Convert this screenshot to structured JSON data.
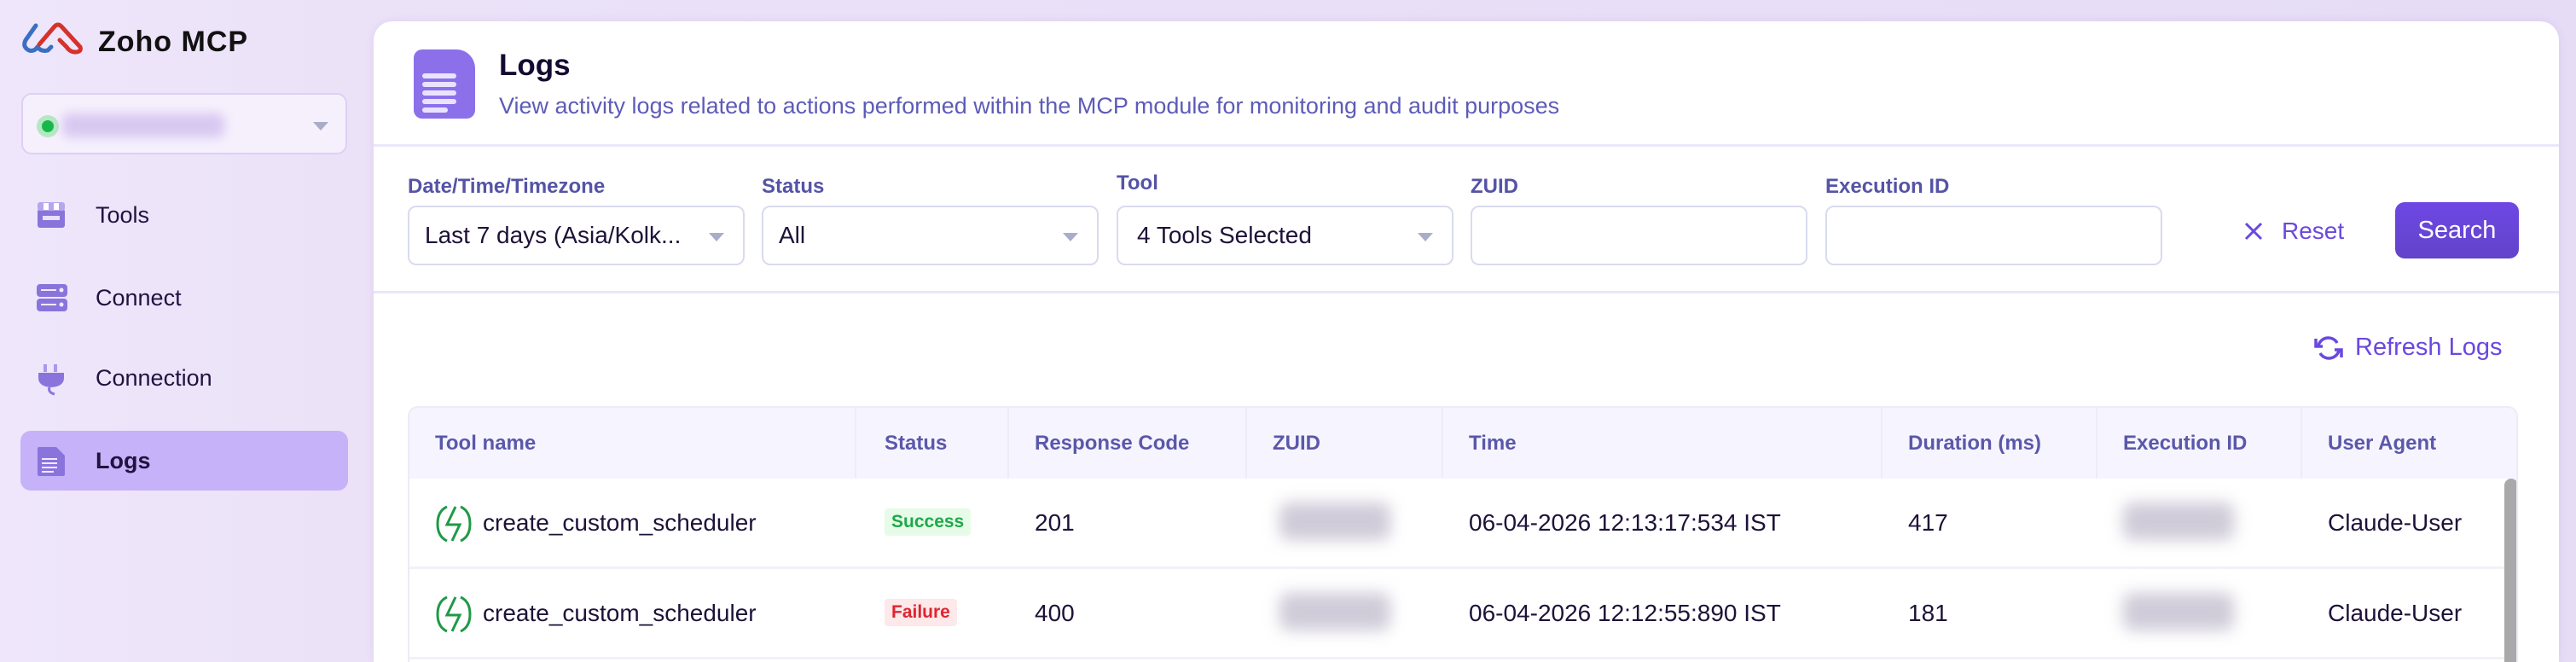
{
  "app": {
    "name": "Zoho MCP",
    "logo": "zoho-logo"
  },
  "sidebar": {
    "org_status_color": "#17b84a",
    "items": [
      {
        "label": "Tools",
        "icon": "storefront-icon",
        "active": false
      },
      {
        "label": "Connect",
        "icon": "server-icon",
        "active": false
      },
      {
        "label": "Connection",
        "icon": "plug-icon",
        "active": false
      },
      {
        "label": "Logs",
        "icon": "document-icon",
        "active": true
      }
    ]
  },
  "header": {
    "title": "Logs",
    "subtitle": "View activity logs related to actions performed within the MCP module for monitoring and audit purposes"
  },
  "filters": {
    "date": {
      "label": "Date/Time/Timezone",
      "value": "Last 7 days (Asia/Kolk..."
    },
    "status": {
      "label": "Status",
      "value": "All"
    },
    "tool": {
      "label": "Tool",
      "value": "4 Tools Selected"
    },
    "zuid": {
      "label": "ZUID",
      "value": ""
    },
    "execution_id": {
      "label": "Execution ID",
      "value": ""
    },
    "reset_label": "Reset",
    "search_label": "Search"
  },
  "refresh_label": "Refresh Logs",
  "accent": "#6a48e0",
  "table": {
    "columns": [
      "Tool name",
      "Status",
      "Response Code",
      "ZUID",
      "Time",
      "Duration (ms)",
      "Execution ID",
      "User Agent"
    ],
    "rows": [
      {
        "tool": "create_custom_scheduler",
        "status": "Success",
        "code": "201",
        "time": "06-04-2026 12:13:17:534 IST",
        "duration": "417",
        "agent": "Claude-User"
      },
      {
        "tool": "create_custom_scheduler",
        "status": "Failure",
        "code": "400",
        "time": "06-04-2026 12:12:55:890 IST",
        "duration": "181",
        "agent": "Claude-User"
      }
    ],
    "status_colors": {
      "Success": "#1fa84a",
      "Failure": "#e0242f"
    }
  }
}
